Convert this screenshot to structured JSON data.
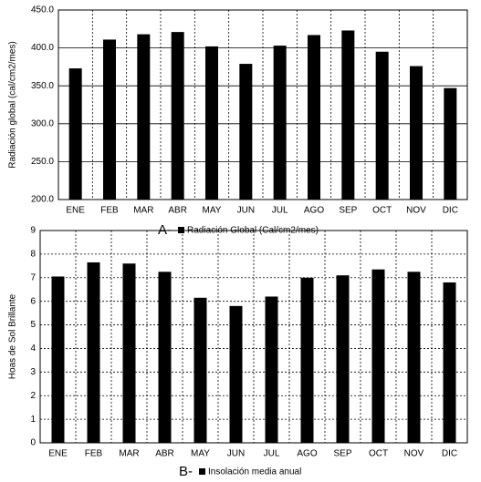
{
  "chart_data": [
    {
      "type": "bar",
      "label": "A-",
      "y_label": "Radiación global (cal/cm2/mes)",
      "categories": [
        "ENE",
        "FEB",
        "MAR",
        "ABR",
        "MAY",
        "JUN",
        "JUL",
        "AGO",
        "SEP",
        "OCT",
        "NOV",
        "DIC"
      ],
      "series": [
        {
          "name": "Radiación Global (Cal/cm2/mes)",
          "color": "#000000",
          "values": [
            373,
            411,
            418,
            421,
            402,
            379,
            403,
            417,
            423,
            395,
            376,
            347
          ]
        }
      ],
      "ylim": [
        200,
        450
      ],
      "yticks": [
        {
          "value": 200,
          "label": "200.0"
        },
        {
          "value": 250,
          "label": "250.0"
        },
        {
          "value": 300,
          "label": "300.0"
        },
        {
          "value": 350,
          "label": "350.0"
        },
        {
          "value": 400,
          "label": "400.0"
        },
        {
          "value": 450,
          "label": "450.0"
        }
      ],
      "grid": true
    },
    {
      "type": "bar",
      "label": "B-",
      "y_label": "Hoas de Sol Brillante",
      "categories": [
        "ENE",
        "FEB",
        "MAR",
        "ABR",
        "MAY",
        "JUN",
        "JUL",
        "AGO",
        "SEP",
        "OCT",
        "NOV",
        "DIC"
      ],
      "series": [
        {
          "name": "Insolación media anual",
          "color": "#000000",
          "values": [
            7.05,
            7.65,
            7.6,
            7.25,
            6.15,
            5.8,
            6.2,
            7.0,
            7.1,
            7.35,
            7.25,
            6.8
          ]
        }
      ],
      "ylim": [
        0,
        9
      ],
      "yticks": [
        0,
        1,
        2,
        3,
        4,
        5,
        6,
        7,
        8,
        9
      ],
      "grid": true
    }
  ]
}
